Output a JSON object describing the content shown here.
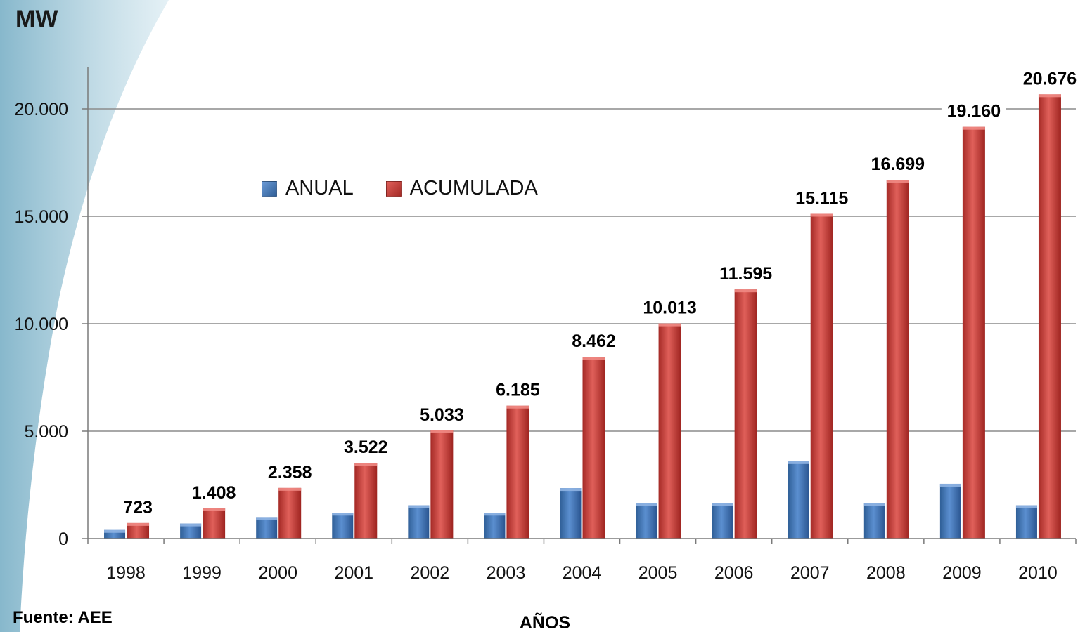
{
  "unit_label": "MW",
  "source_label": "Fuente: AEE",
  "colors": {
    "anual": "#4f81bd",
    "acumulada": "#c0504d",
    "swoosh": "#b9d7e2"
  },
  "chart_data": {
    "type": "bar",
    "xlabel": "AÑOS",
    "ylabel": "MW",
    "ylim": [
      0,
      22000
    ],
    "yticks": [
      0,
      5000,
      10000,
      15000,
      20000
    ],
    "ytick_labels": [
      "0",
      "5.000",
      "10.000",
      "15.000",
      "20.000"
    ],
    "grid": true,
    "legend_placement": "top-left",
    "categories": [
      "1998",
      "1999",
      "2000",
      "2001",
      "2002",
      "2003",
      "2004",
      "2005",
      "2006",
      "2007",
      "2008",
      "2009",
      "2010"
    ],
    "series": [
      {
        "name": "ANUAL",
        "values": [
          400,
          700,
          1000,
          1200,
          1550,
          1200,
          2350,
          1650,
          1650,
          3600,
          1650,
          2550,
          1550
        ]
      },
      {
        "name": "ACUMULADA",
        "values": [
          723,
          1408,
          2358,
          3522,
          5033,
          6185,
          8462,
          10013,
          11595,
          15115,
          16699,
          19160,
          20676
        ],
        "data_labels": [
          "723",
          "1.408",
          "2.358",
          "3.522",
          "5.033",
          "6.185",
          "8.462",
          "10.013",
          "11.595",
          "15.115",
          "16.699",
          "19.160",
          "20.676"
        ]
      }
    ]
  }
}
